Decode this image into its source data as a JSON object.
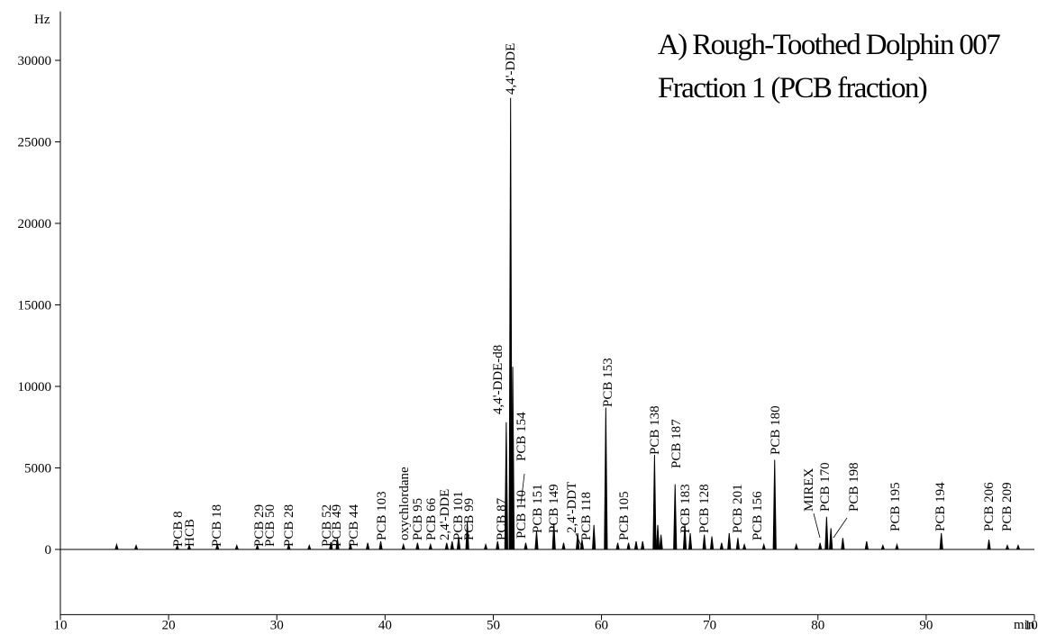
{
  "chart_data": {
    "type": "chromatogram",
    "title": "A) Rough-Toothed Dolphin 007",
    "subtitle": "Fraction 1 (PCB fraction)",
    "x_label": "min",
    "y_label": "Hz",
    "color": "#000000",
    "xlim": [
      10,
      100
    ],
    "xticks": [
      10,
      20,
      30,
      40,
      50,
      60,
      70,
      80,
      90,
      100
    ],
    "ylim": [
      -4000,
      33000
    ],
    "yticks": [
      0,
      5000,
      10000,
      15000,
      20000,
      25000,
      30000
    ],
    "x": [
      15.2,
      17.0,
      20.8,
      21.9,
      24.5,
      26.3,
      28.2,
      31.1,
      33.0,
      35.0,
      35.6,
      36.8,
      38.4,
      39.6,
      41.7,
      43.0,
      44.2,
      45.7,
      46.2,
      46.8,
      47.6,
      49.3,
      50.4,
      51.2,
      51.6,
      51.8,
      53.0,
      54.0,
      55.6,
      56.5,
      57.8,
      58.2,
      59.3,
      60.4,
      61.5,
      62.5,
      63.2,
      63.8,
      64.9,
      65.2,
      65.5,
      66.8,
      67.7,
      68.2,
      69.5,
      70.2,
      71.1,
      71.8,
      72.6,
      73.2,
      75.0,
      76.0,
      78.0,
      80.2,
      80.8,
      81.2,
      82.3,
      84.5,
      86.0,
      87.3,
      91.4,
      95.8,
      97.5,
      98.5
    ],
    "values": [
      300,
      250,
      250,
      250,
      300,
      250,
      250,
      300,
      250,
      450,
      650,
      300,
      400,
      500,
      300,
      400,
      300,
      400,
      500,
      800,
      1700,
      300,
      500,
      7800,
      27700,
      11200,
      400,
      1100,
      1600,
      400,
      1000,
      600,
      1500,
      8700,
      400,
      400,
      500,
      500,
      5800,
      1500,
      900,
      4000,
      1500,
      1000,
      900,
      800,
      400,
      1000,
      700,
      300,
      300,
      5500,
      300,
      400,
      2000,
      1300,
      700,
      500,
      250,
      300,
      1000,
      600,
      250,
      250
    ],
    "annotations": [
      "PCB 8",
      "HCB",
      "PCB 18",
      "PCB 29",
      "PCB 50",
      "PCB 28",
      "PCB 52",
      "PCB 49",
      "PCB 44",
      "PCB 103",
      "oxychlordane",
      "PCB 95",
      "PCB 66",
      "2,4'-DDE",
      "PCB 101",
      "PCB 99",
      "PCB 87",
      "4,4'-DDE-d8",
      "4,4'-DDE",
      "PCB 110",
      "PCB 154",
      "PCB 151",
      "PCB 149",
      "2,4'-DDT",
      "PCB 118",
      "PCB 105",
      "PCB 153",
      "PCB 138",
      "PCB 187",
      "PCB 183",
      "PCB 128",
      "PCB 201",
      "PCB 156",
      "PCB 180",
      "MIREX",
      "PCB 170",
      "PCB 198",
      "PCB 195",
      "PCB 194",
      "PCB 206",
      "PCB 209"
    ]
  }
}
